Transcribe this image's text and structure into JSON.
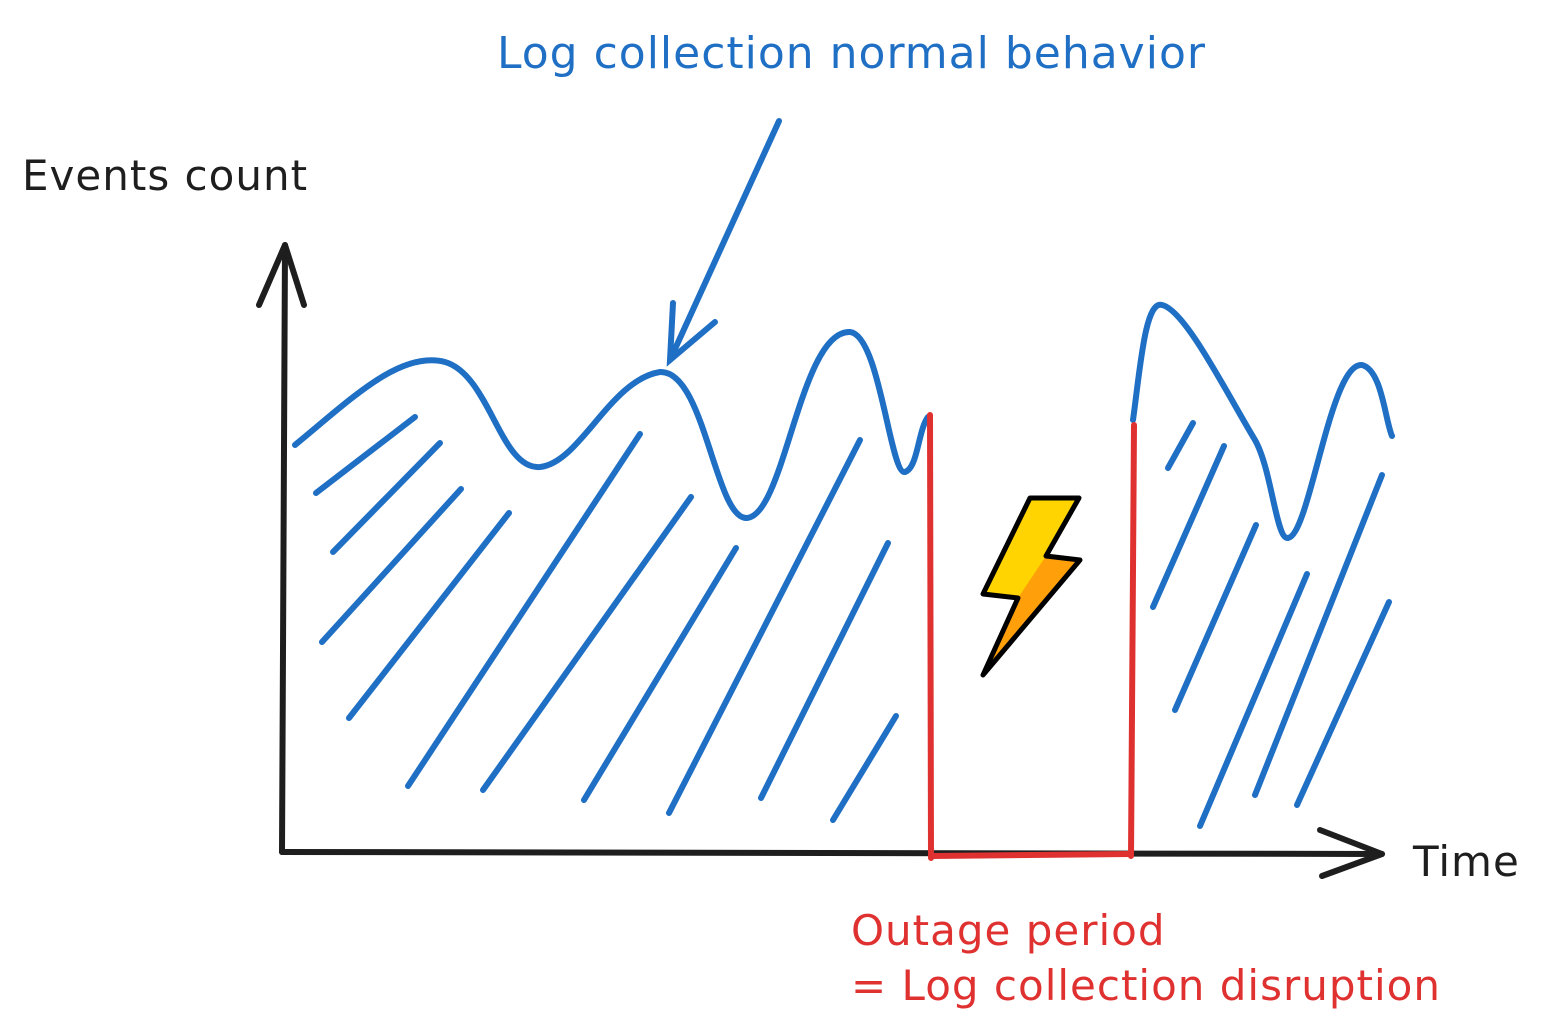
{
  "labels": {
    "annotation": "Log collection normal behavior",
    "y_axis": "Events count",
    "x_axis": "Time",
    "outage_line1": "Outage period",
    "outage_line2": "= Log collection disruption"
  },
  "icons": {
    "lightning": "lightning-bolt-icon"
  },
  "colors": {
    "signal": "#1f6fc5",
    "outage": "#e03131",
    "axis": "#1e1e1e",
    "bolt_fill": "#ffd400",
    "bolt_shade": "#ff9f0a"
  }
}
